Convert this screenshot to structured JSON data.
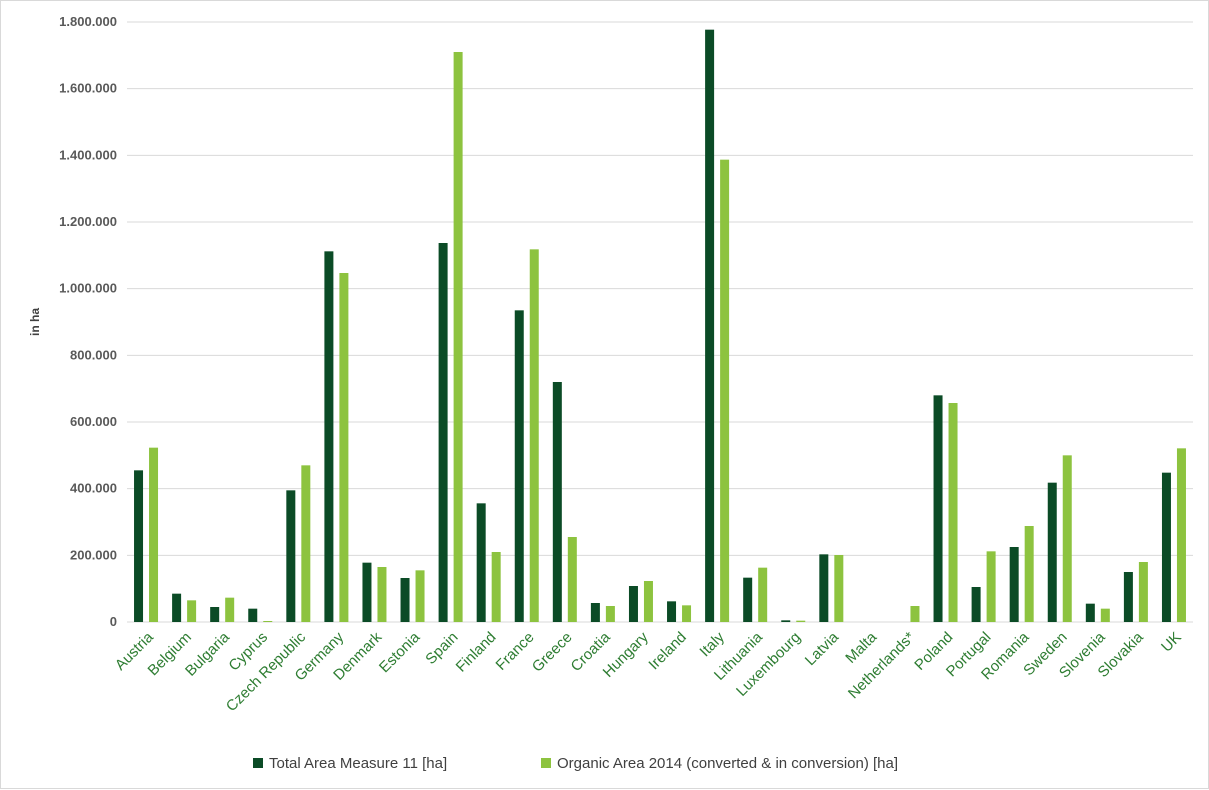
{
  "chart_data": {
    "type": "bar",
    "ylabel": "in ha",
    "ylim": [
      0,
      1800000
    ],
    "yticks": [
      0,
      200000,
      400000,
      600000,
      800000,
      1000000,
      1200000,
      1400000,
      1600000,
      1800000
    ],
    "ytick_labels": [
      "0",
      "200.000",
      "400.000",
      "600.000",
      "800.000",
      "1.000.000",
      "1.200.000",
      "1.400.000",
      "1.600.000",
      "1.800.000"
    ],
    "grid": true,
    "legend_position": "bottom",
    "categories": [
      "Austria",
      "Belgium",
      "Bulgaria",
      "Cyprus",
      "Czech Republic",
      "Germany",
      "Denmark",
      "Estonia",
      "Spain",
      "Finland",
      "France",
      "Greece",
      "Croatia",
      "Hungary",
      "Ireland",
      "Italy",
      "Lithuania",
      "Luxembourg",
      "Latvia",
      "Malta",
      "Netherlands*",
      "Poland",
      "Portugal",
      "Romania",
      "Sweden",
      "Slovenia",
      "Slovakia",
      "UK"
    ],
    "series": [
      {
        "name": "Total Area Measure 11 [ha]",
        "color": "#0b4b26",
        "values": [
          455000,
          85000,
          45000,
          40000,
          395000,
          1112000,
          178000,
          132000,
          1137000,
          356000,
          935000,
          720000,
          57000,
          108000,
          62000,
          1777000,
          133000,
          5000,
          203000,
          0,
          0,
          680000,
          105000,
          225000,
          418000,
          55000,
          150000,
          448000
        ]
      },
      {
        "name": "Organic Area 2014 (converted & in conversion) [ha]",
        "color": "#8dc33f",
        "values": [
          523000,
          65000,
          73000,
          3000,
          470000,
          1047000,
          165000,
          155000,
          1710000,
          210000,
          1118000,
          255000,
          48000,
          123000,
          50000,
          1387000,
          163000,
          4000,
          201000,
          0,
          48000,
          657000,
          212000,
          288000,
          500000,
          40000,
          180000,
          521000
        ]
      }
    ]
  }
}
